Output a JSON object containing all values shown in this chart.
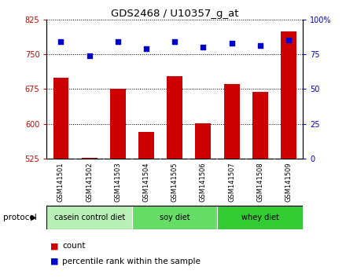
{
  "title": "GDS2468 / U10357_g_at",
  "samples": [
    "GSM141501",
    "GSM141502",
    "GSM141503",
    "GSM141504",
    "GSM141505",
    "GSM141506",
    "GSM141507",
    "GSM141508",
    "GSM141509"
  ],
  "counts": [
    700,
    527,
    676,
    583,
    702,
    601,
    686,
    668,
    800
  ],
  "percentile_ranks": [
    84,
    74,
    84,
    79,
    84,
    80,
    83,
    81,
    85
  ],
  "ylim_left": [
    525,
    825
  ],
  "ylim_right": [
    0,
    100
  ],
  "yticks_left": [
    525,
    600,
    675,
    750,
    825
  ],
  "yticks_right": [
    0,
    25,
    50,
    75,
    100
  ],
  "bar_color": "#cc0000",
  "dot_color": "#0000cc",
  "bar_bottom": 525,
  "protocol_groups": [
    {
      "label": "casein control diet",
      "start": 0,
      "end": 3,
      "color": "#b8f0b8"
    },
    {
      "label": "soy diet",
      "start": 3,
      "end": 6,
      "color": "#66dd66"
    },
    {
      "label": "whey diet",
      "start": 6,
      "end": 9,
      "color": "#33cc33"
    }
  ],
  "legend_items": [
    {
      "label": "count",
      "color": "#cc0000"
    },
    {
      "label": "percentile rank within the sample",
      "color": "#0000cc"
    }
  ],
  "tick_label_color_left": "#cc0000",
  "tick_label_color_right": "#0000cc",
  "protocol_label": "protocol",
  "background_color": "#ffffff",
  "plot_bg": "#ffffff",
  "label_box_color": "#c8c8c8",
  "label_divider_color": "#888888"
}
